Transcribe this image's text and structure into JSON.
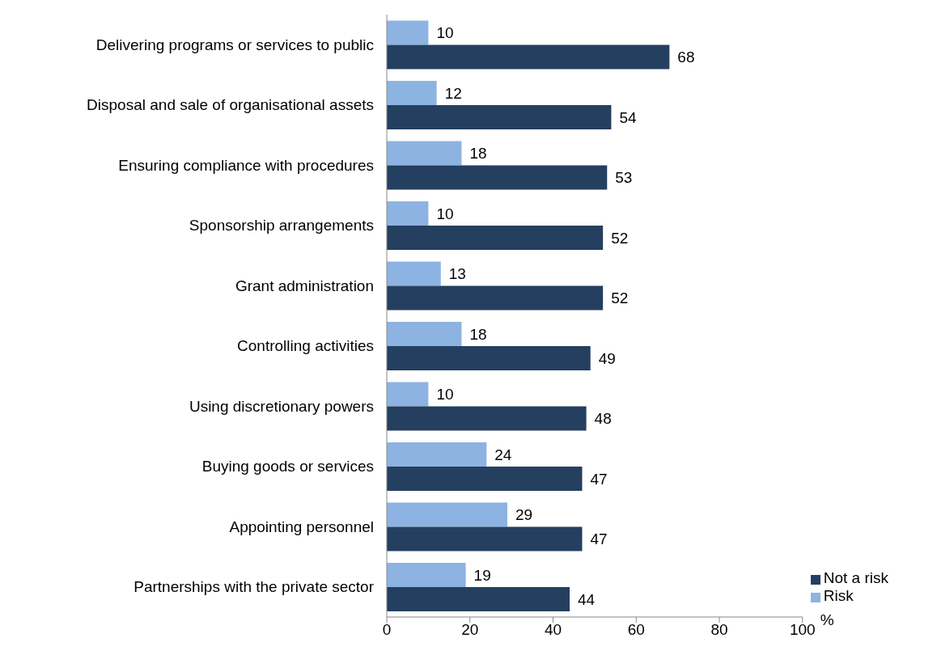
{
  "chart_data": {
    "type": "bar",
    "orientation": "horizontal",
    "categories": [
      "Delivering programs or services to public",
      "Disposal and sale of organisational assets",
      "Ensuring compliance with procedures",
      "Sponsorship arrangements",
      "Grant administration",
      "Controlling activities",
      "Using discretionary powers",
      "Buying goods or services",
      "Appointing personnel",
      "Partnerships with the private sector"
    ],
    "series": [
      {
        "name": "Risk",
        "color": "#8db3e2",
        "values": [
          10,
          12,
          18,
          10,
          13,
          18,
          10,
          24,
          29,
          19
        ]
      },
      {
        "name": "Not a risk",
        "color": "#243f60",
        "values": [
          68,
          54,
          53,
          52,
          52,
          49,
          48,
          47,
          47,
          44
        ]
      }
    ],
    "xlabel": "%",
    "xlim": [
      0,
      100
    ],
    "xticks": [
      0,
      20,
      40,
      60,
      80,
      100
    ],
    "data_labels": true,
    "grid": false,
    "legend": "bottom right"
  }
}
